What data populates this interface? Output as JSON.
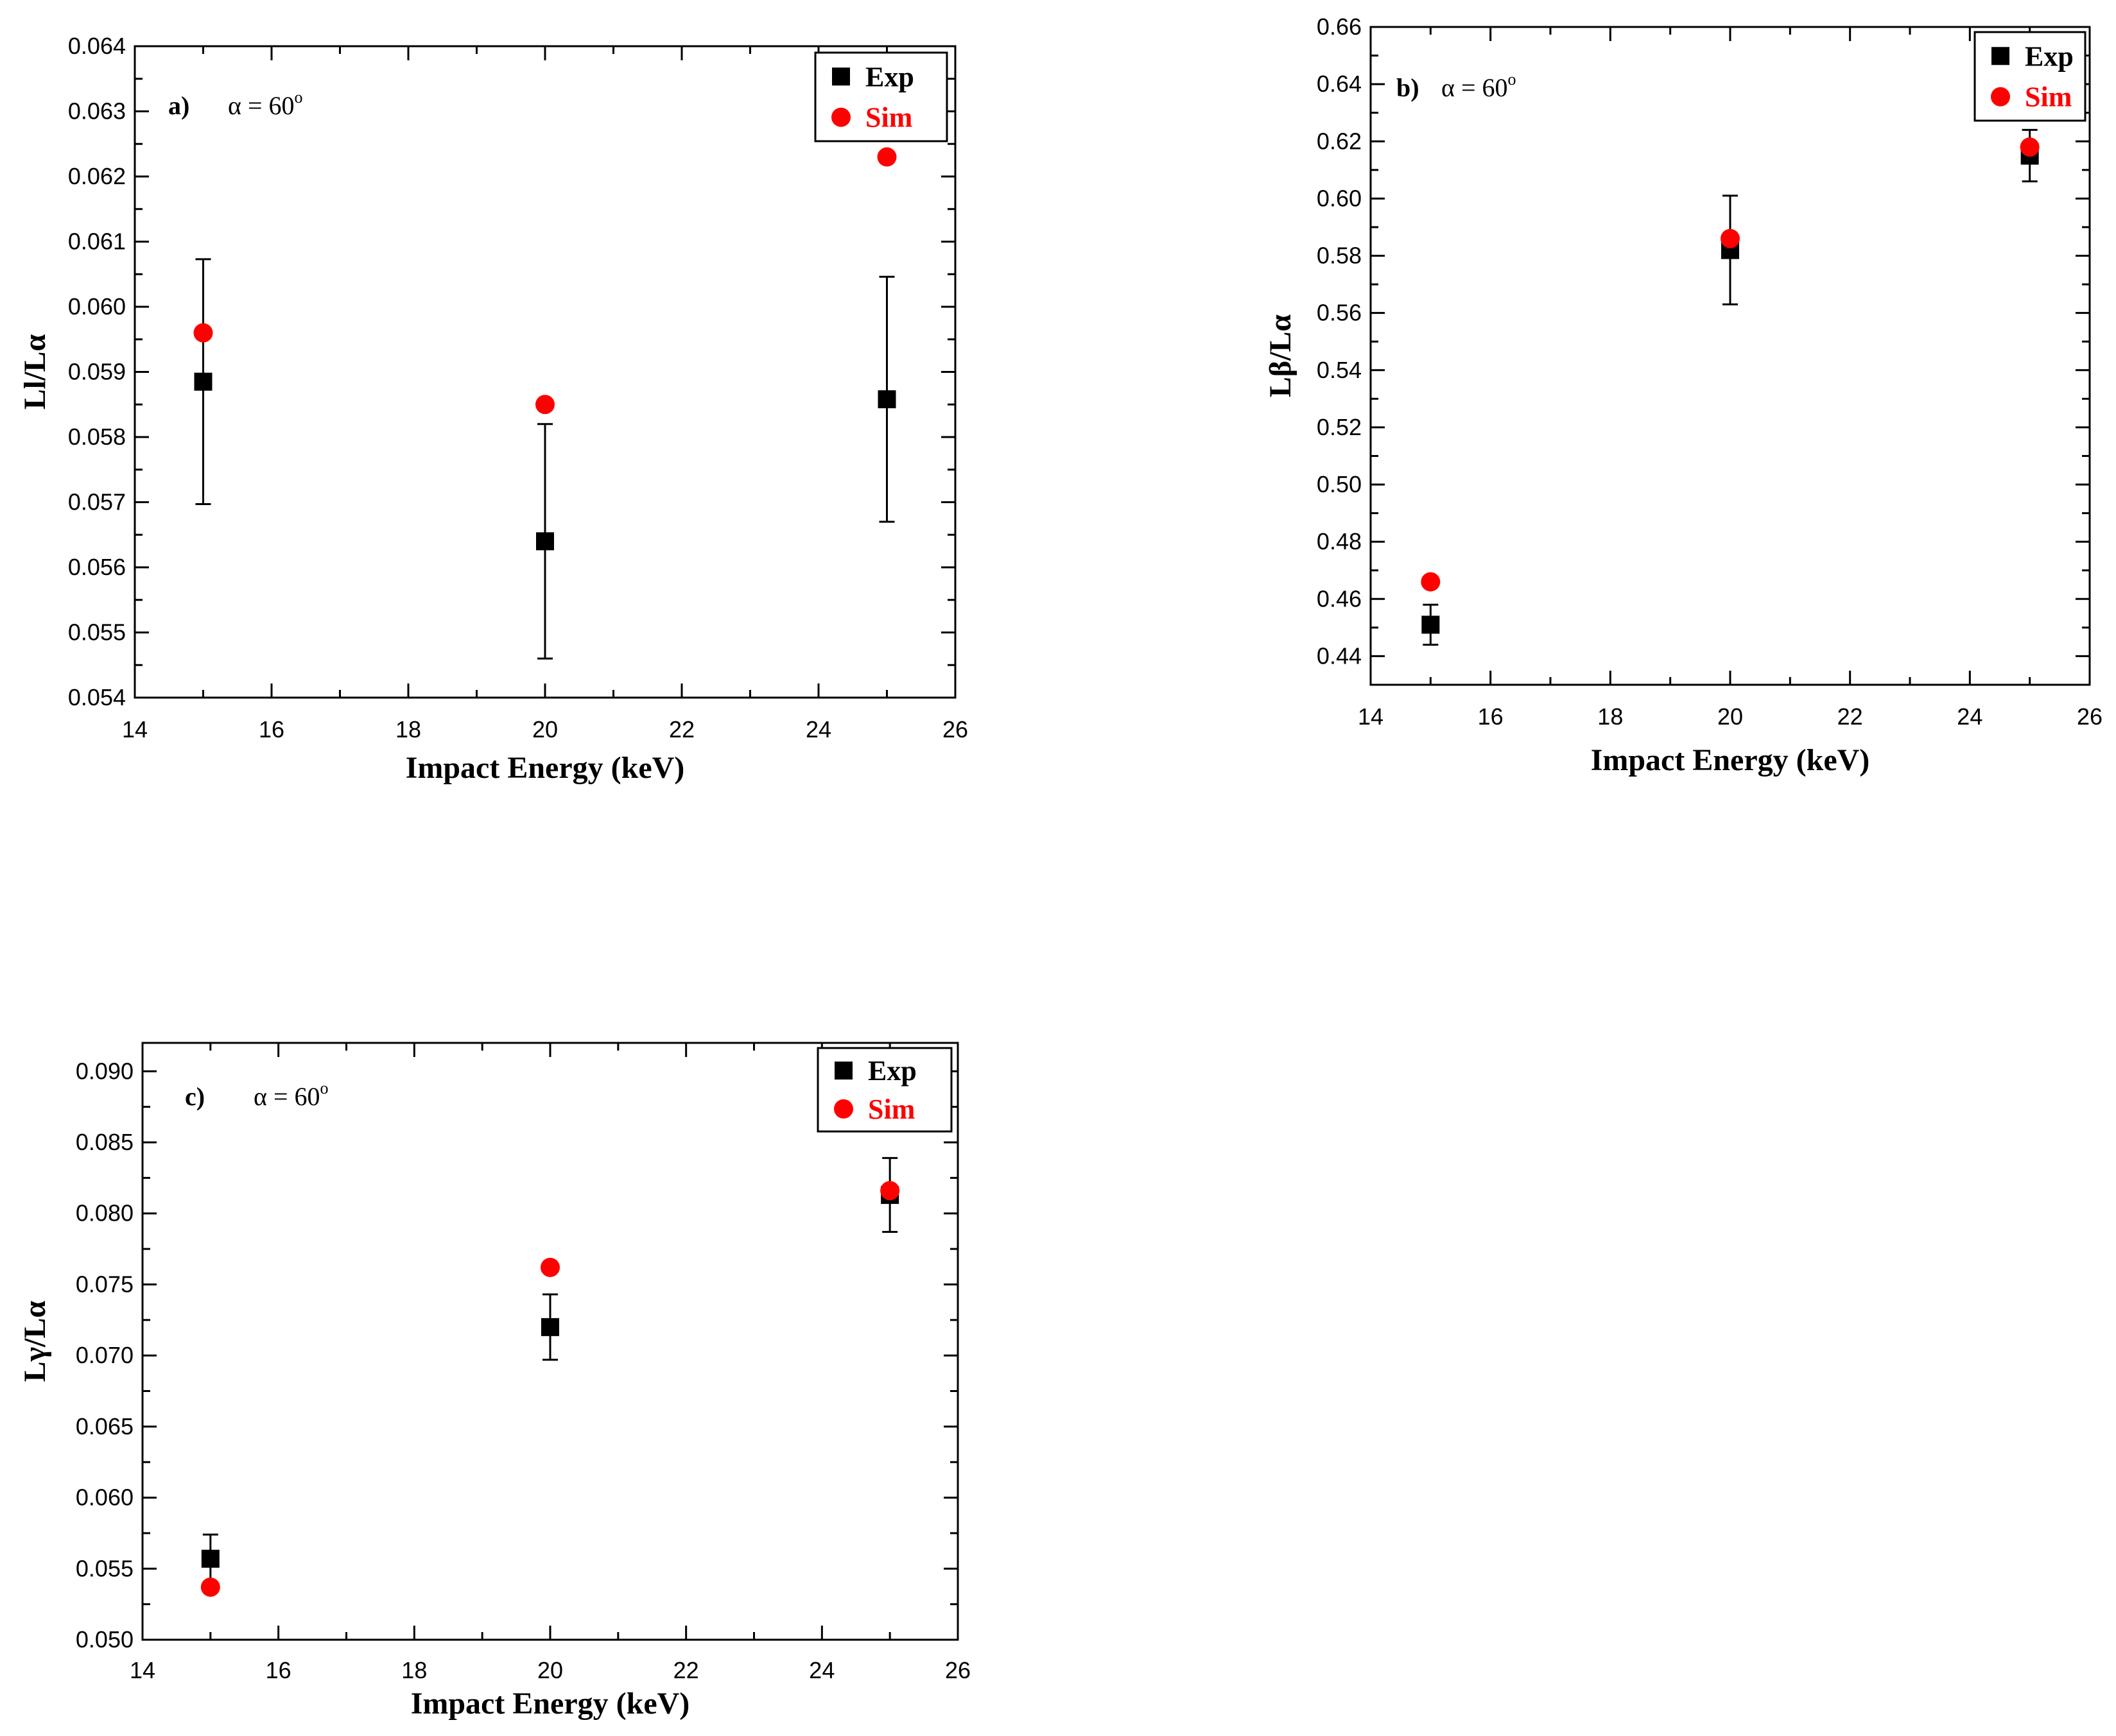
{
  "colors": {
    "exp": "#000000",
    "sim": "#ff0000",
    "axis": "#000000"
  },
  "chart_data": [
    {
      "type": "scatter",
      "panel": "a)",
      "annotation": "α = 60",
      "annotation_sup": "o",
      "xlabel": "Impact Energy (keV)",
      "ylabel": "Ll/Lα",
      "xlim": [
        14,
        26
      ],
      "ylim": [
        0.054,
        0.064
      ],
      "xticks": [
        "14",
        "16",
        "18",
        "20",
        "22",
        "24",
        "26"
      ],
      "yticks": [
        "0.054",
        "0.055",
        "0.056",
        "0.057",
        "0.058",
        "0.059",
        "0.060",
        "0.061",
        "0.062",
        "0.063",
        "0.064"
      ],
      "legend": {
        "position": "top-right",
        "entries": [
          "Exp",
          "Sim"
        ]
      },
      "series": [
        {
          "name": "Exp",
          "marker": "square",
          "x": [
            15,
            20,
            25
          ],
          "y": [
            0.05885,
            0.0564,
            0.05858
          ],
          "err": [
            0.00188,
            0.0018,
            0.00188
          ]
        },
        {
          "name": "Sim",
          "marker": "circle",
          "x": [
            15,
            20,
            25
          ],
          "y": [
            0.0596,
            0.0585,
            0.0623
          ]
        }
      ]
    },
    {
      "type": "scatter",
      "panel": "b)",
      "annotation": "α = 60",
      "annotation_sup": "o",
      "xlabel": "Impact Energy (keV)",
      "ylabel": "Lβ/Lα",
      "xlim": [
        14,
        26
      ],
      "ylim": [
        0.43,
        0.66
      ],
      "xticks": [
        "14",
        "16",
        "18",
        "20",
        "22",
        "24",
        "26"
      ],
      "yticks": [
        "0.44",
        "0.46",
        "0.48",
        "0.50",
        "0.52",
        "0.54",
        "0.56",
        "0.58",
        "0.60",
        "0.62",
        "0.64",
        "0.66"
      ],
      "legend": {
        "position": "top-right",
        "entries": [
          "Exp",
          "Sim"
        ]
      },
      "series": [
        {
          "name": "Exp",
          "marker": "square",
          "x": [
            15,
            20,
            25
          ],
          "y": [
            0.451,
            0.582,
            0.615
          ],
          "err": [
            0.007,
            0.019,
            0.009
          ]
        },
        {
          "name": "Sim",
          "marker": "circle",
          "x": [
            15,
            20,
            25
          ],
          "y": [
            0.466,
            0.586,
            0.618
          ]
        }
      ]
    },
    {
      "type": "scatter",
      "panel": "c)",
      "annotation": "α = 60",
      "annotation_sup": "o",
      "xlabel": "Impact Energy (keV)",
      "ylabel": "Lγ/Lα",
      "xlim": [
        14,
        26
      ],
      "ylim": [
        0.05,
        0.092
      ],
      "xticks": [
        "14",
        "16",
        "18",
        "20",
        "22",
        "24",
        "26"
      ],
      "yticks": [
        "0.050",
        "0.055",
        "0.060",
        "0.065",
        "0.070",
        "0.075",
        "0.080",
        "0.085",
        "0.090"
      ],
      "legend": {
        "position": "top-right",
        "entries": [
          "Exp",
          "Sim"
        ]
      },
      "series": [
        {
          "name": "Exp",
          "marker": "square",
          "x": [
            15,
            20,
            25
          ],
          "y": [
            0.0557,
            0.072,
            0.0813
          ],
          "err": [
            0.0017,
            0.0023,
            0.0026
          ]
        },
        {
          "name": "Sim",
          "marker": "circle",
          "x": [
            15,
            20,
            25
          ],
          "y": [
            0.0537,
            0.0762,
            0.0816
          ]
        }
      ]
    }
  ]
}
